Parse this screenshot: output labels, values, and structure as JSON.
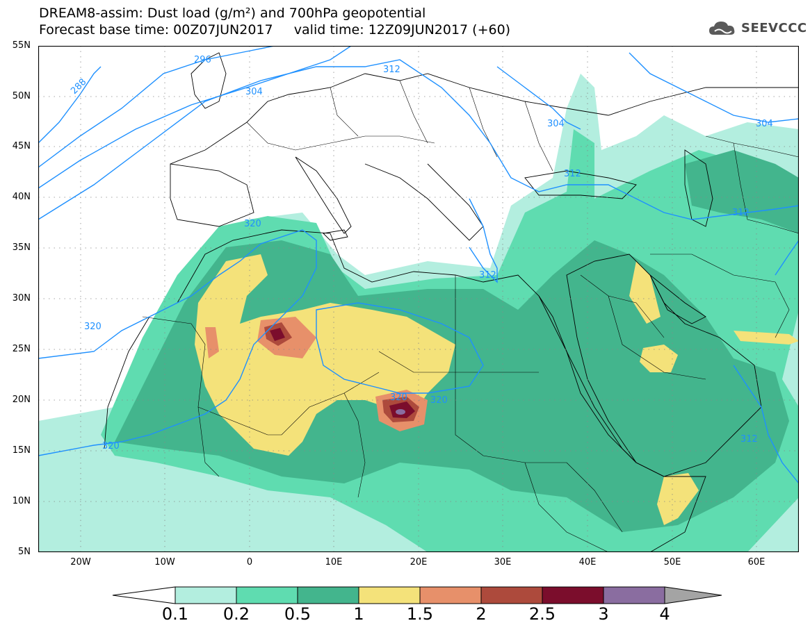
{
  "title": {
    "line1": "DREAM8-assim: Dust load (g/m²) and 700hPa geopotential",
    "line2": "Forecast base time: 00Z07JUN2017     valid time: 12Z09JUN2017 (+60)"
  },
  "logo": {
    "text": "SEEVCCC",
    "icon": "cloud-icon"
  },
  "map": {
    "lat_labels": [
      "55N",
      "50N",
      "45N",
      "40N",
      "35N",
      "30N",
      "25N",
      "20N",
      "15N",
      "10N",
      "5N"
    ],
    "lon_labels": [
      "20W",
      "10W",
      "0",
      "10E",
      "20E",
      "30E",
      "40E",
      "50E",
      "60E"
    ],
    "contour_labels": [
      "296",
      "288",
      "312",
      "304",
      "304",
      "304",
      "312",
      "312",
      "320",
      "320",
      "320",
      "320",
      "320",
      "312",
      "312"
    ]
  },
  "colorbar": {
    "ticks": [
      "0.1",
      "0.2",
      "0.5",
      "1",
      "1.5",
      "2",
      "2.5",
      "3",
      "4"
    ],
    "colors": [
      "#ffffff",
      "#b3eedf",
      "#5fdcb0",
      "#43b58d",
      "#f4e27a",
      "#e7906a",
      "#ad4a3c",
      "#7b0d2c",
      "#8a6da0",
      "#a4a4a4"
    ]
  }
}
